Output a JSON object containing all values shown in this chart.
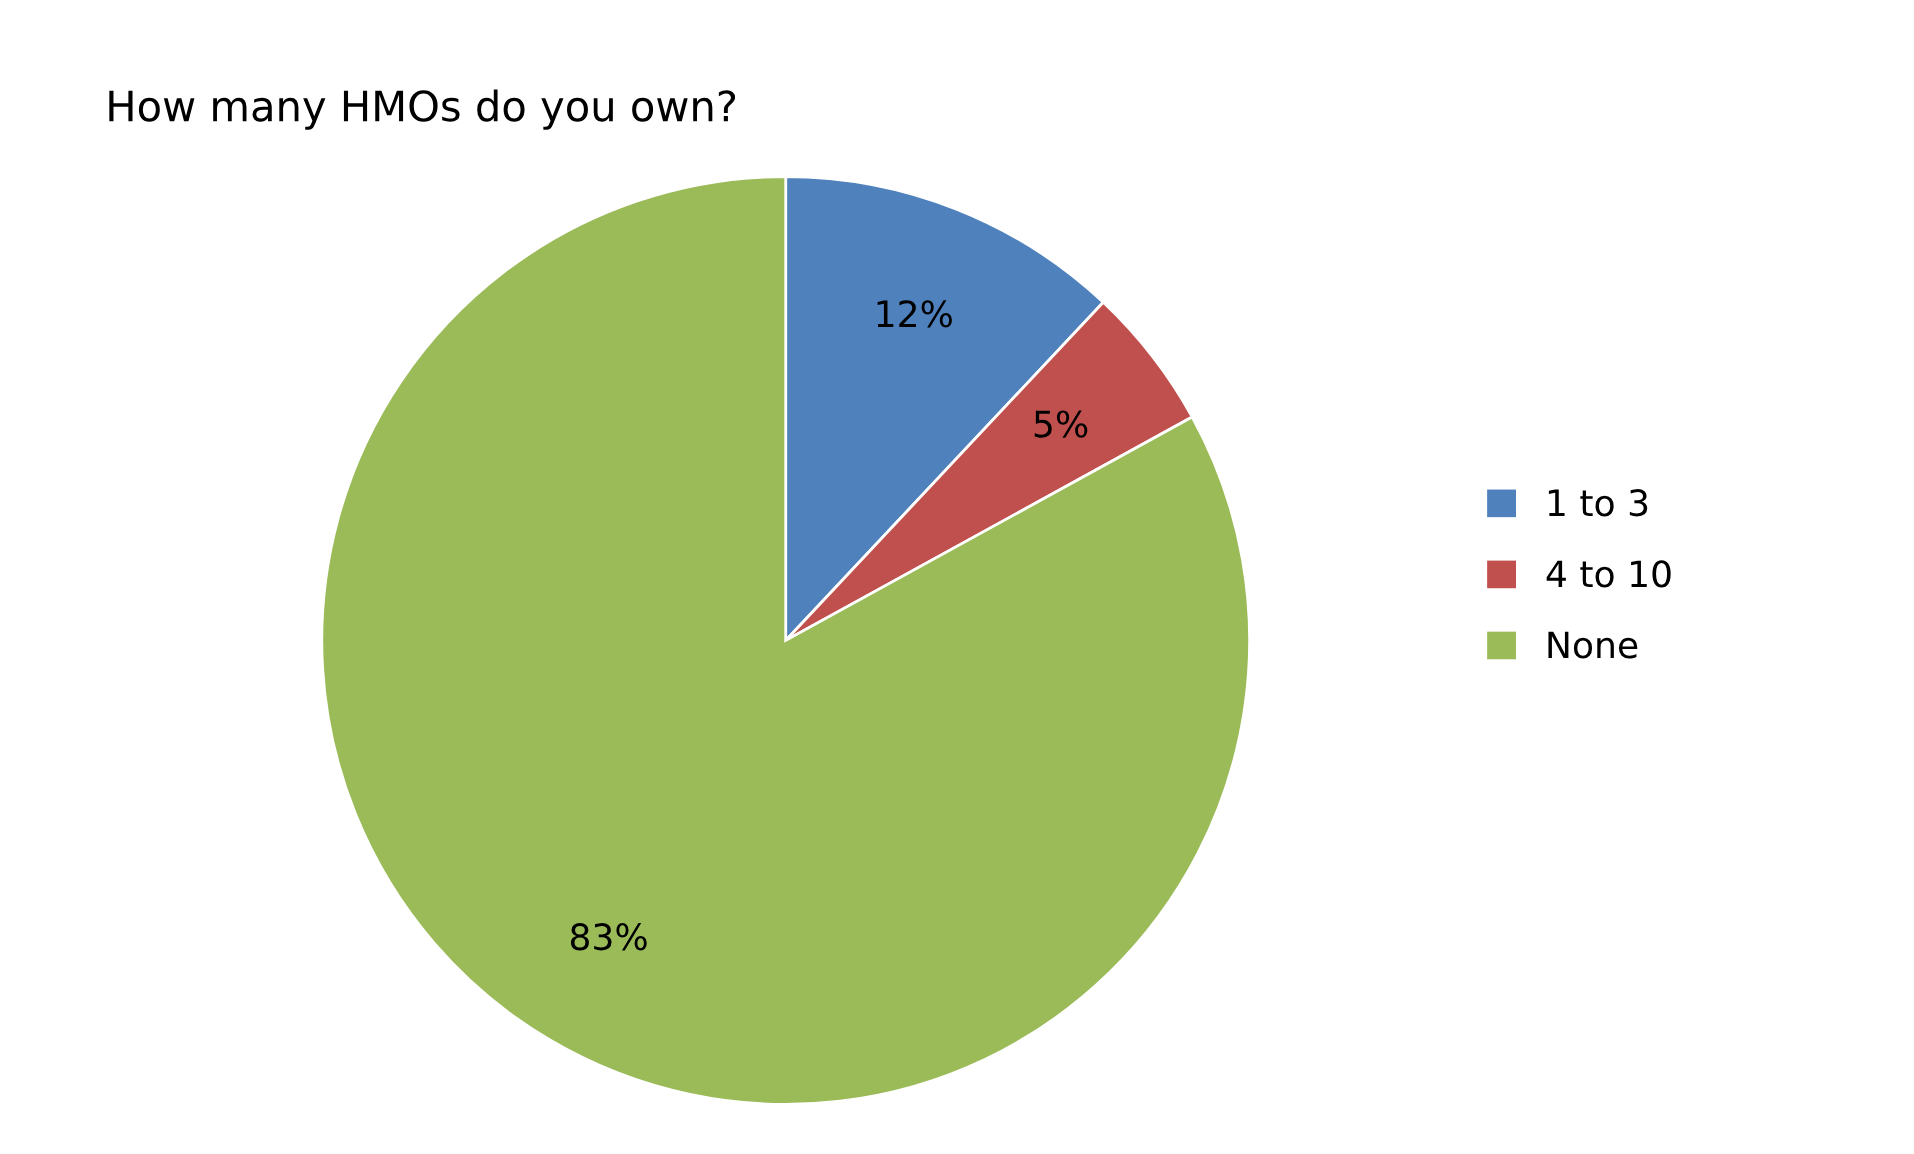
{
  "chart_data": {
    "type": "pie",
    "title": "How many HMOs do you own?",
    "categories": [
      "1 to 3",
      "4 to 10",
      "None"
    ],
    "values": [
      12,
      5,
      83
    ],
    "colors": [
      "#4f81bd",
      "#c0504d",
      "#9bbb59"
    ],
    "value_labels": [
      "12%",
      "5%",
      "83%"
    ],
    "legend": "right"
  }
}
